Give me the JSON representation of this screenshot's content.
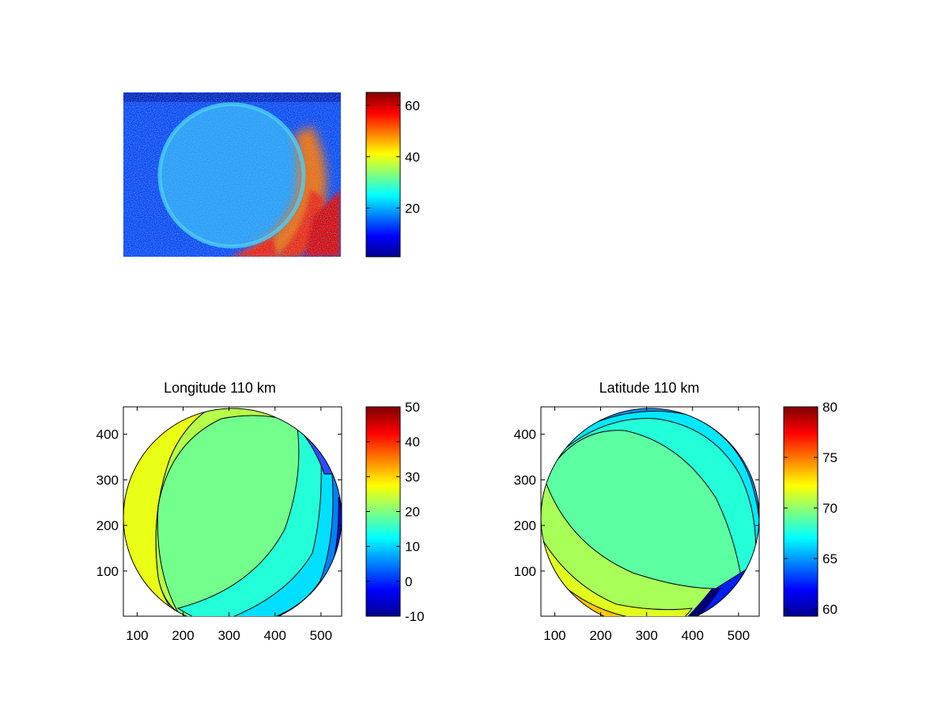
{
  "colormap": "jet",
  "chart_data": [
    {
      "type": "heatmap",
      "title": "",
      "panel": "raw-image",
      "xlabel": "",
      "ylabel": "",
      "xticks": [],
      "yticks": [],
      "description_of_content": "noisy intensity image of an auroral oval, high values in lower right",
      "colorbar": {
        "min": 1,
        "max": 65,
        "ticks": [
          20,
          40,
          60
        ]
      }
    },
    {
      "type": "heatmap",
      "title": "Longitude 110 km",
      "panel": "longitude-map",
      "xlim": [
        70,
        545
      ],
      "ylim": [
        1,
        460
      ],
      "xticks": [
        100,
        200,
        300,
        400,
        500
      ],
      "yticks": [
        100,
        200,
        300,
        400
      ],
      "colorbar": {
        "min": -10,
        "max": 50,
        "ticks": [
          -10,
          0,
          10,
          20,
          30,
          40,
          50
        ]
      },
      "contour_levels": [
        0,
        5,
        10,
        15,
        20,
        25,
        30,
        35,
        40
      ]
    },
    {
      "type": "heatmap",
      "title": "Latitude 110 km",
      "panel": "latitude-map",
      "xlim": [
        70,
        545
      ],
      "ylim": [
        1,
        460
      ],
      "xticks": [
        100,
        200,
        300,
        400,
        500
      ],
      "yticks": [
        100,
        200,
        300,
        400
      ],
      "colorbar": {
        "min": 59.3,
        "max": 80,
        "ticks": [
          60,
          65,
          70,
          75,
          80
        ]
      },
      "contour_levels": [
        60,
        62,
        64,
        66,
        68,
        70,
        72,
        74,
        76,
        78
      ]
    }
  ]
}
